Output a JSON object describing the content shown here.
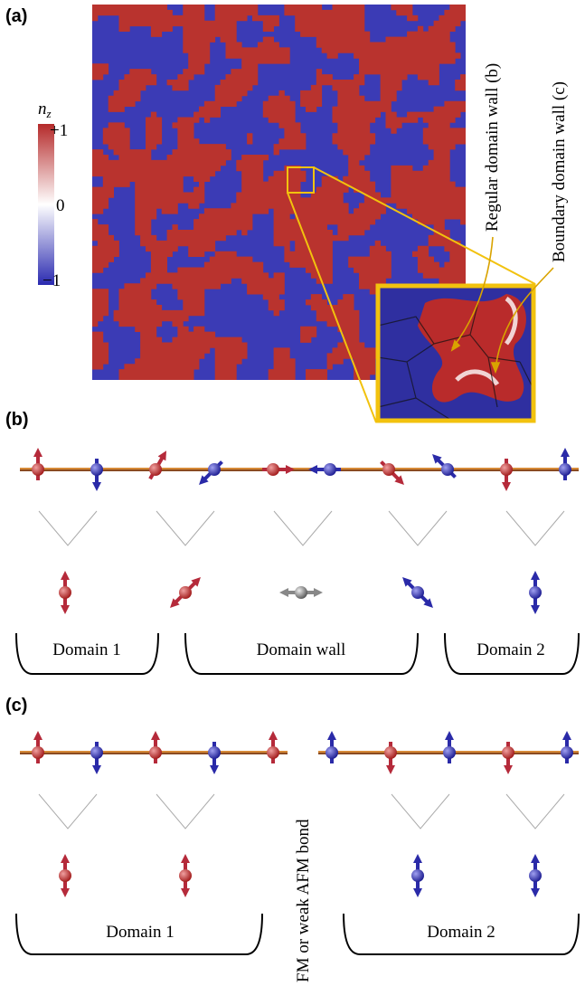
{
  "panels": {
    "a": "(a)",
    "b": "(b)",
    "c": "(c)"
  },
  "colorbar": {
    "label": "n",
    "label_sub": "z",
    "ticks": [
      "+1",
      "0",
      "−1"
    ]
  },
  "annotations": [
    "Regular domain wall (b)",
    "Boundary domain wall (c)"
  ],
  "panel_b": {
    "groups": [
      "Domain 1",
      "Domain wall",
      "Domain 2"
    ]
  },
  "panel_c": {
    "groups": [
      "Domain 1",
      "Domain 2"
    ],
    "bond_label": "FM or weak AFM bond"
  }
}
